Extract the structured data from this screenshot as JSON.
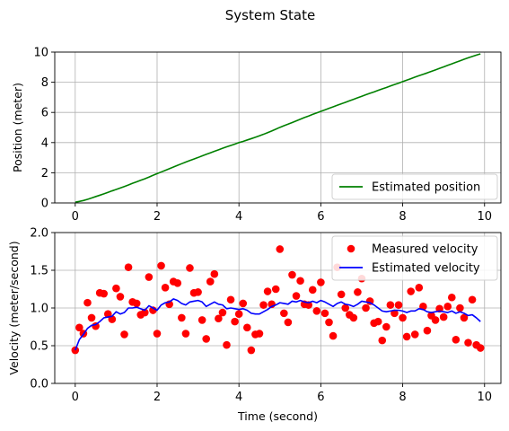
{
  "figure": {
    "title": "System State"
  },
  "chart_data": [
    {
      "type": "line",
      "title": "",
      "xlabel": "",
      "ylabel": "Position (meter)",
      "xlim": [
        -0.5,
        10.4
      ],
      "ylim": [
        0,
        10
      ],
      "xticks": [
        "0",
        "2",
        "4",
        "6",
        "8",
        "10"
      ],
      "yticks": [
        "0",
        "2",
        "4",
        "6",
        "8",
        "10"
      ],
      "grid": true,
      "legend_position": "lower-right",
      "series": [
        {
          "name": "Estimated position",
          "color": "#008000",
          "style": "line",
          "x": [
            0,
            0.1,
            0.2,
            0.3,
            0.4,
            0.5,
            0.6,
            0.7,
            0.8,
            0.9,
            1.0,
            1.1,
            1.2,
            1.3,
            1.4,
            1.5,
            1.6,
            1.7,
            1.8,
            1.9,
            2.0,
            2.1,
            2.2,
            2.3,
            2.4,
            2.5,
            2.6,
            2.7,
            2.8,
            2.9,
            3.0,
            3.1,
            3.2,
            3.3,
            3.4,
            3.5,
            3.6,
            3.7,
            3.8,
            3.9,
            4.0,
            4.1,
            4.2,
            4.3,
            4.4,
            4.5,
            4.6,
            4.7,
            4.8,
            4.9,
            5.0,
            5.1,
            5.2,
            5.3,
            5.4,
            5.5,
            5.6,
            5.7,
            5.8,
            5.9,
            6.0,
            6.1,
            6.2,
            6.3,
            6.4,
            6.5,
            6.6,
            6.7,
            6.8,
            6.9,
            7.0,
            7.1,
            7.2,
            7.3,
            7.4,
            7.5,
            7.6,
            7.7,
            7.8,
            7.9,
            8.0,
            8.1,
            8.2,
            8.3,
            8.4,
            8.5,
            8.6,
            8.7,
            8.8,
            8.9,
            9.0,
            9.1,
            9.2,
            9.3,
            9.4,
            9.5,
            9.6,
            9.7,
            9.8,
            9.9
          ],
          "y": [
            0.05,
            0.1,
            0.16,
            0.24,
            0.33,
            0.42,
            0.51,
            0.6,
            0.7,
            0.8,
            0.89,
            0.99,
            1.09,
            1.19,
            1.3,
            1.4,
            1.5,
            1.6,
            1.71,
            1.83,
            1.94,
            2.05,
            2.16,
            2.27,
            2.38,
            2.49,
            2.6,
            2.71,
            2.81,
            2.91,
            3.01,
            3.12,
            3.22,
            3.32,
            3.42,
            3.52,
            3.62,
            3.72,
            3.81,
            3.9,
            4.0,
            4.08,
            4.17,
            4.26,
            4.35,
            4.45,
            4.55,
            4.66,
            4.77,
            4.89,
            5.01,
            5.12,
            5.22,
            5.33,
            5.44,
            5.55,
            5.66,
            5.76,
            5.87,
            5.97,
            6.07,
            6.17,
            6.27,
            6.37,
            6.47,
            6.57,
            6.67,
            6.77,
            6.87,
            6.97,
            7.07,
            7.17,
            7.27,
            7.36,
            7.46,
            7.56,
            7.65,
            7.75,
            7.85,
            7.94,
            8.04,
            8.14,
            8.24,
            8.34,
            8.44,
            8.53,
            8.62,
            8.72,
            8.82,
            8.92,
            9.02,
            9.12,
            9.22,
            9.32,
            9.42,
            9.52,
            9.62,
            9.71,
            9.8,
            9.88
          ]
        }
      ]
    },
    {
      "type": "scatter",
      "title": "",
      "xlabel": "Time (second)",
      "ylabel": "Velocity (meter/second)",
      "xlim": [
        -0.5,
        10.4
      ],
      "ylim": [
        0,
        2
      ],
      "xticks": [
        "0",
        "2",
        "4",
        "6",
        "8",
        "10"
      ],
      "yticks": [
        "0.0",
        "0.5",
        "1.0",
        "1.5",
        "2.0"
      ],
      "grid": true,
      "legend_position": "upper-right",
      "series": [
        {
          "name": "Measured velocity",
          "color": "#ff0000",
          "style": "markers",
          "x": [
            0,
            0.1,
            0.2,
            0.3,
            0.4,
            0.5,
            0.6,
            0.7,
            0.8,
            0.9,
            1.0,
            1.1,
            1.2,
            1.3,
            1.4,
            1.5,
            1.6,
            1.7,
            1.8,
            1.9,
            2.0,
            2.1,
            2.2,
            2.3,
            2.4,
            2.5,
            2.6,
            2.7,
            2.8,
            2.9,
            3.0,
            3.1,
            3.2,
            3.3,
            3.4,
            3.5,
            3.6,
            3.7,
            3.8,
            3.9,
            4.0,
            4.1,
            4.2,
            4.3,
            4.4,
            4.5,
            4.6,
            4.7,
            4.8,
            4.9,
            5.0,
            5.1,
            5.2,
            5.3,
            5.4,
            5.5,
            5.6,
            5.7,
            5.8,
            5.9,
            6.0,
            6.1,
            6.2,
            6.3,
            6.4,
            6.5,
            6.6,
            6.7,
            6.8,
            6.9,
            7.0,
            7.1,
            7.2,
            7.3,
            7.4,
            7.5,
            7.6,
            7.7,
            7.8,
            7.9,
            8.0,
            8.1,
            8.2,
            8.3,
            8.4,
            8.5,
            8.6,
            8.7,
            8.8,
            8.9,
            9.0,
            9.1,
            9.2,
            9.3,
            9.4,
            9.5,
            9.6,
            9.7,
            9.8,
            9.9
          ],
          "y": [
            0.44,
            0.74,
            0.66,
            1.07,
            0.87,
            0.76,
            1.2,
            1.19,
            0.92,
            0.85,
            1.26,
            1.15,
            0.65,
            1.54,
            1.08,
            1.06,
            0.91,
            0.94,
            1.41,
            0.97,
            0.66,
            1.56,
            1.27,
            1.05,
            1.35,
            1.33,
            0.87,
            0.66,
            1.53,
            1.2,
            1.21,
            0.84,
            0.59,
            1.35,
            1.45,
            0.86,
            0.94,
            0.51,
            1.11,
            0.82,
            0.92,
            1.06,
            0.74,
            0.44,
            0.65,
            0.66,
            1.04,
            1.22,
            1.05,
            1.25,
            1.78,
            0.93,
            0.81,
            1.44,
            1.16,
            1.36,
            1.05,
            1.04,
            1.24,
            0.96,
            1.34,
            0.93,
            0.81,
            0.63,
            1.54,
            1.18,
            1.0,
            0.91,
            0.87,
            1.21,
            1.39,
            1.0,
            1.09,
            0.8,
            0.82,
            0.57,
            0.75,
            1.04,
            0.93,
            1.04,
            0.87,
            0.62,
            1.22,
            0.65,
            1.27,
            1.02,
            0.7,
            0.9,
            0.84,
            0.99,
            0.88,
            1.02,
            1.14,
            0.58,
            1.0,
            0.87,
            0.54,
            1.11,
            0.51,
            0.47
          ]
        },
        {
          "name": "Estimated velocity",
          "color": "#0000ff",
          "style": "line",
          "x": [
            0,
            0.1,
            0.2,
            0.3,
            0.4,
            0.5,
            0.6,
            0.7,
            0.8,
            0.9,
            1.0,
            1.1,
            1.2,
            1.3,
            1.4,
            1.5,
            1.6,
            1.7,
            1.8,
            1.9,
            2.0,
            2.1,
            2.2,
            2.3,
            2.4,
            2.5,
            2.6,
            2.7,
            2.8,
            2.9,
            3.0,
            3.1,
            3.2,
            3.3,
            3.4,
            3.5,
            3.6,
            3.7,
            3.8,
            3.9,
            4.0,
            4.1,
            4.2,
            4.3,
            4.4,
            4.5,
            4.6,
            4.7,
            4.8,
            4.9,
            5.0,
            5.1,
            5.2,
            5.3,
            5.4,
            5.5,
            5.6,
            5.7,
            5.8,
            5.9,
            6.0,
            6.1,
            6.2,
            6.3,
            6.4,
            6.5,
            6.6,
            6.7,
            6.8,
            6.9,
            7.0,
            7.1,
            7.2,
            7.3,
            7.4,
            7.5,
            7.6,
            7.7,
            7.8,
            7.9,
            8.0,
            8.1,
            8.2,
            8.3,
            8.4,
            8.5,
            8.6,
            8.7,
            8.8,
            8.9,
            9.0,
            9.1,
            9.2,
            9.3,
            9.4,
            9.5,
            9.6,
            9.7,
            9.8,
            9.9
          ],
          "y": [
            0.44,
            0.58,
            0.65,
            0.73,
            0.77,
            0.78,
            0.82,
            0.87,
            0.88,
            0.89,
            0.95,
            0.92,
            0.94,
            1.0,
            1.0,
            1.01,
            0.99,
            0.97,
            1.03,
            1.0,
            0.97,
            1.04,
            1.07,
            1.08,
            1.12,
            1.1,
            1.06,
            1.04,
            1.08,
            1.09,
            1.1,
            1.08,
            1.02,
            1.05,
            1.08,
            1.05,
            1.04,
            0.99,
            1.0,
            0.99,
            0.98,
            0.99,
            0.97,
            0.93,
            0.92,
            0.92,
            0.95,
            0.98,
            1.02,
            1.04,
            1.07,
            1.06,
            1.05,
            1.09,
            1.08,
            1.1,
            1.08,
            1.07,
            1.09,
            1.07,
            1.1,
            1.08,
            1.05,
            1.02,
            1.06,
            1.08,
            1.05,
            1.04,
            1.02,
            1.05,
            1.09,
            1.08,
            1.07,
            1.04,
            1.0,
            0.96,
            0.95,
            0.96,
            0.97,
            0.97,
            0.96,
            0.94,
            0.96,
            0.96,
            0.99,
            0.98,
            0.95,
            0.94,
            0.95,
            0.96,
            0.95,
            0.94,
            0.96,
            0.93,
            0.95,
            0.93,
            0.9,
            0.91,
            0.87,
            0.82
          ]
        }
      ]
    }
  ]
}
